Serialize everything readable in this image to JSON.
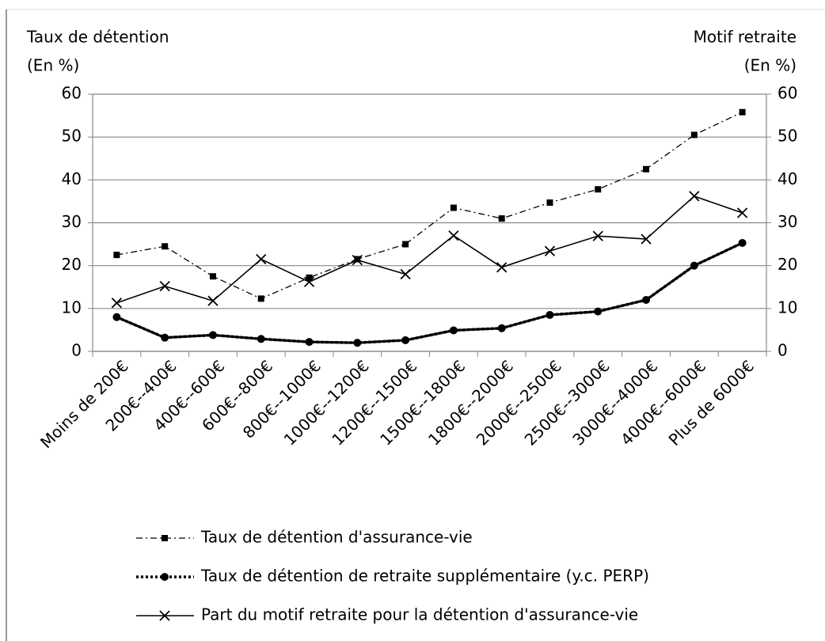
{
  "chart_data": {
    "type": "line",
    "y_label": [
      "Taux de détention",
      "(En %)"
    ],
    "y2_label": [
      "Motif retraite",
      "(En %)"
    ],
    "categories": [
      "Moins de 200€",
      "200€--400€",
      "400€--600€",
      "600€--800€",
      "800€--1000€",
      "1000€--1200€",
      "1200€--1500€",
      "1500€--1800€",
      "1800€--2000€",
      "2000€--2500€",
      "2500€--3000€",
      "3000€--4000€",
      "4000€--6000€",
      "Plus de 6000€"
    ],
    "series": [
      {
        "name": "Taux de détention d'assurance-vie",
        "color": "#000000",
        "style": "dashdot",
        "marker": "square",
        "values": [
          22.5,
          24.5,
          17.5,
          12.3,
          17.2,
          21.5,
          25,
          33.5,
          31,
          34.7,
          37.8,
          42.5,
          50.5,
          55.8
        ]
      },
      {
        "name": "Taux de détention de retraite supplémentaire (y.c. PERP)",
        "color": "#000000",
        "style": "dotted",
        "marker": "circle",
        "values": [
          8,
          3.2,
          3.8,
          2.9,
          2.2,
          2,
          2.6,
          4.9,
          5.4,
          8.5,
          9.3,
          12,
          20,
          25.3
        ]
      },
      {
        "name": "Part du motif  retraite pour la détention d'assurance-vie",
        "color": "#000000",
        "style": "solid",
        "marker": "x",
        "axis": "y2",
        "values": [
          11.3,
          15.2,
          11.8,
          21.5,
          16.2,
          21.3,
          18,
          27,
          19.6,
          23.4,
          26.9,
          26.2,
          36.2,
          32.3
        ]
      }
    ],
    "ylim": [
      0,
      60
    ],
    "yticks": [
      0,
      10,
      20,
      30,
      40,
      50,
      60
    ],
    "y2lim": [
      0,
      60
    ],
    "y2ticks": [
      0,
      10,
      20,
      30,
      40,
      50,
      60
    ],
    "grid": true,
    "legend": "bottom"
  }
}
